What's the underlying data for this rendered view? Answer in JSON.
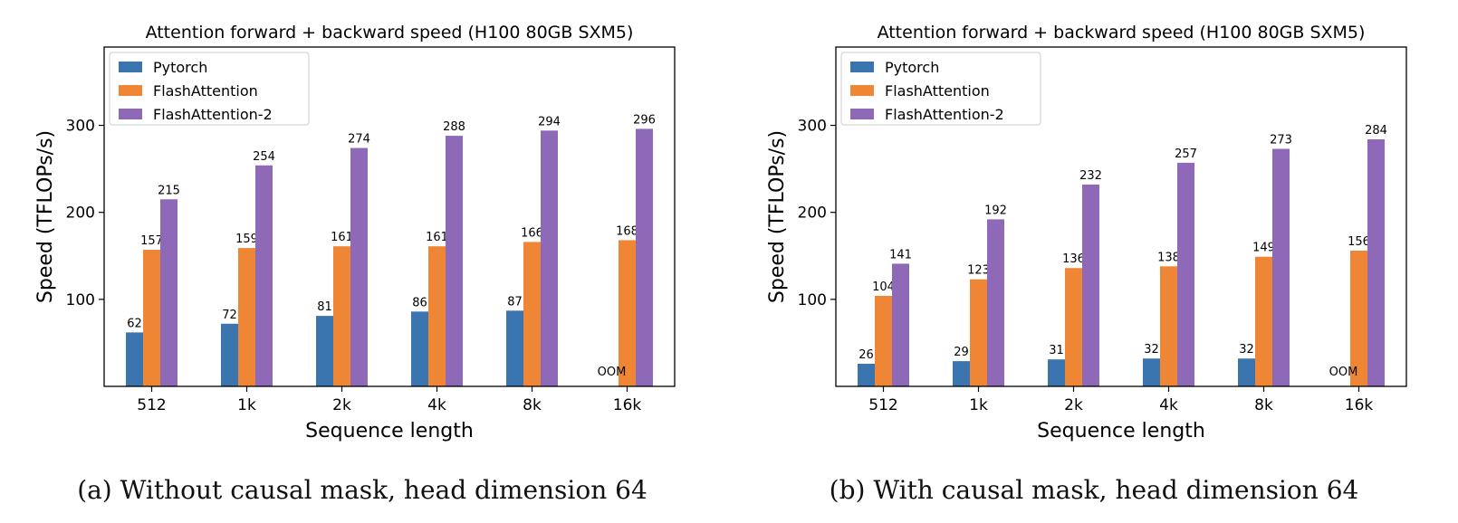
{
  "chart_data": [
    {
      "type": "bar",
      "title": "Attention forward + backward speed (H100 80GB SXM5)",
      "xlabel": "Sequence length",
      "ylabel": "Speed (TFLOPs/s)",
      "ylim": [
        0,
        390
      ],
      "yticks": [
        100,
        200,
        300
      ],
      "grid": false,
      "legend": "top-left",
      "categories": [
        "512",
        "1k",
        "2k",
        "4k",
        "8k",
        "16k"
      ],
      "series": [
        {
          "name": "Pytorch",
          "color": "#3b75af",
          "values": [
            62,
            72,
            81,
            86,
            87,
            null
          ]
        },
        {
          "name": "FlashAttention",
          "color": "#ef8636",
          "values": [
            157,
            159,
            161,
            161,
            166,
            168
          ]
        },
        {
          "name": "FlashAttention-2",
          "color": "#8d69b8",
          "values": [
            215,
            254,
            274,
            288,
            294,
            296
          ]
        }
      ],
      "annotations": [
        {
          "category": "16k",
          "series": "Pytorch",
          "text": "OOM"
        }
      ],
      "caption": "(a) Without causal mask, head dimension 64"
    },
    {
      "type": "bar",
      "title": "Attention forward + backward speed (H100 80GB SXM5)",
      "xlabel": "Sequence length",
      "ylabel": "Speed (TFLOPs/s)",
      "ylim": [
        0,
        390
      ],
      "yticks": [
        100,
        200,
        300
      ],
      "grid": false,
      "legend": "top-left",
      "categories": [
        "512",
        "1k",
        "2k",
        "4k",
        "8k",
        "16k"
      ],
      "series": [
        {
          "name": "Pytorch",
          "color": "#3b75af",
          "values": [
            26,
            29,
            31,
            32,
            32,
            null
          ]
        },
        {
          "name": "FlashAttention",
          "color": "#ef8636",
          "values": [
            104,
            123,
            136,
            138,
            149,
            156
          ]
        },
        {
          "name": "FlashAttention-2",
          "color": "#8d69b8",
          "values": [
            141,
            192,
            232,
            257,
            273,
            284
          ]
        }
      ],
      "annotations": [
        {
          "category": "16k",
          "series": "Pytorch",
          "text": "OOM"
        }
      ],
      "caption": "(b) With causal mask, head dimension 64"
    }
  ]
}
